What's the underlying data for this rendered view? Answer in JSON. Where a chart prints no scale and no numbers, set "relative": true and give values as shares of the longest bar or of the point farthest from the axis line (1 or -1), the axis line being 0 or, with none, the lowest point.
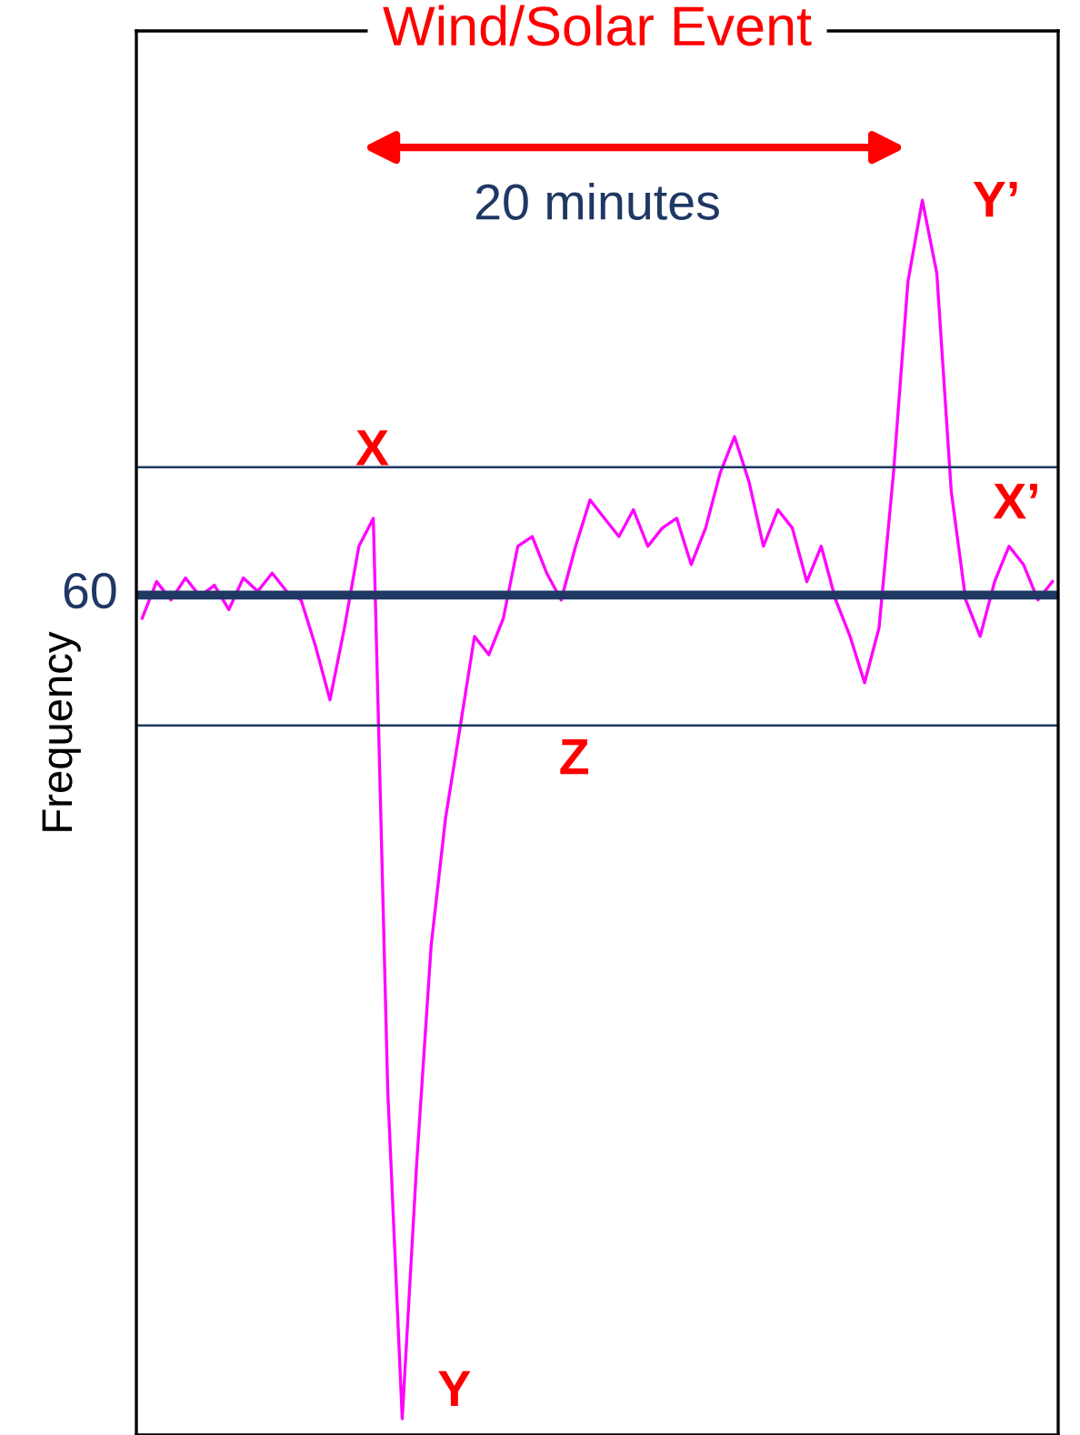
{
  "chart_data": {
    "type": "line",
    "relative": true,
    "title": "Wind/Solar Event",
    "ylabel": "Frequency",
    "categories": [
      null,
      null,
      null,
      null,
      null,
      null,
      null,
      null,
      null,
      null,
      null,
      null,
      null,
      null,
      null,
      null,
      null,
      null,
      null,
      null,
      null,
      null,
      null,
      null,
      null,
      null,
      null,
      null,
      null,
      null,
      null,
      null,
      null,
      null,
      null,
      null,
      null,
      null,
      null,
      null,
      null,
      null,
      null,
      null,
      null,
      null,
      null,
      null,
      null,
      null,
      null,
      null,
      null,
      null,
      null,
      null,
      null,
      null,
      null,
      null,
      null,
      null,
      null,
      null
    ],
    "series": [
      {
        "color": "#ff00ff",
        "values": [
          0.657,
          0.687,
          0.672,
          0.69,
          0.675,
          0.684,
          0.664,
          0.69,
          0.679,
          0.694,
          0.679,
          0.672,
          0.634,
          0.59,
          0.649,
          0.716,
          0.739,
          0.269,
          0,
          0.209,
          0.388,
          0.493,
          0.567,
          0.642,
          0.627,
          0.657,
          0.716,
          0.724,
          0.694,
          0.672,
          0.716,
          0.754,
          0.739,
          0.724,
          0.746,
          0.716,
          0.731,
          0.739,
          0.701,
          0.731,
          0.776,
          0.806,
          0.769,
          0.716,
          0.746,
          0.731,
          0.687,
          0.716,
          0.672,
          0.642,
          0.604,
          0.649,
          0.776,
          0.933,
          1,
          0.94,
          0.761,
          0.672,
          0.642,
          0.687,
          0.716,
          0.701,
          0.672,
          0.687
        ]
      }
    ],
    "ref_lines": [
      {
        "axis": "y",
        "value": 0.676,
        "color": "#1f3864"
      },
      {
        "axis": "y",
        "value": 0.781,
        "color": "#1f3864"
      },
      {
        "axis": "y",
        "value": 0.569,
        "color": "#1f3864"
      }
    ],
    "annotations": [
      "X",
      "Y",
      "Y’",
      "X’",
      "Z",
      "20 minutes",
      "60"
    ],
    "marker": "none",
    "line_style": "solid",
    "legend": false
  }
}
